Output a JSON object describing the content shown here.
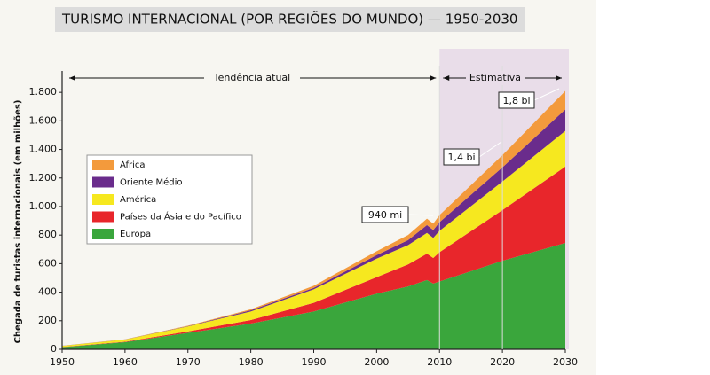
{
  "chart_data": {
    "type": "stacked_area",
    "title": "TURISMO INTERNACIONAL (POR REGIÕES DO MUNDO) — 1950-2030",
    "y_label": "Chegada de turistas internacionais (em milhões)",
    "annotations": [
      "Tendência atual",
      "Estimativa",
      "940 mi",
      "1,4 bi",
      "1,8 bi"
    ],
    "x": [
      1950,
      1960,
      1970,
      1980,
      1990,
      2000,
      2005,
      2008,
      2009,
      2010,
      2020,
      2030
    ],
    "series": [
      {
        "name": "Europa",
        "color": "#3aa63c",
        "values": [
          15,
          50,
          115,
          180,
          265,
          390,
          440,
          485,
          460,
          475,
          620,
          745
        ]
      },
      {
        "name": "Países da Ásia e do Pacífico",
        "color": "#e8262b",
        "values": [
          1,
          3,
          10,
          25,
          60,
          115,
          155,
          185,
          180,
          205,
          355,
          535
        ]
      },
      {
        "name": "América",
        "color": "#f6e81f",
        "values": [
          8,
          15,
          35,
          60,
          95,
          130,
          135,
          145,
          140,
          150,
          200,
          250
        ]
      },
      {
        "name": "Oriente Médio",
        "color": "#6a2c8c",
        "values": [
          0.5,
          1,
          2,
          8,
          10,
          25,
          35,
          55,
          55,
          60,
          100,
          150
        ]
      },
      {
        "name": "África",
        "color": "#f39a3c",
        "values": [
          0.5,
          1,
          3,
          7,
          15,
          27,
          35,
          45,
          45,
          50,
          85,
          130
        ]
      }
    ],
    "xlim": [
      1950,
      2030
    ],
    "xticks": [
      1950,
      1960,
      1970,
      1980,
      1990,
      2000,
      2010,
      2020,
      2030
    ],
    "ylim": [
      0,
      1950
    ],
    "yticks": [
      0,
      200,
      400,
      600,
      800,
      {
        "value": 1000,
        "label": "1.000"
      },
      {
        "value": 1200,
        "label": "1.200"
      },
      {
        "value": 1400,
        "label": "1.400"
      },
      {
        "value": 1600,
        "label": "1.600"
      },
      {
        "value": 1800,
        "label": "1.800"
      }
    ],
    "estimate_from": 2010
  }
}
